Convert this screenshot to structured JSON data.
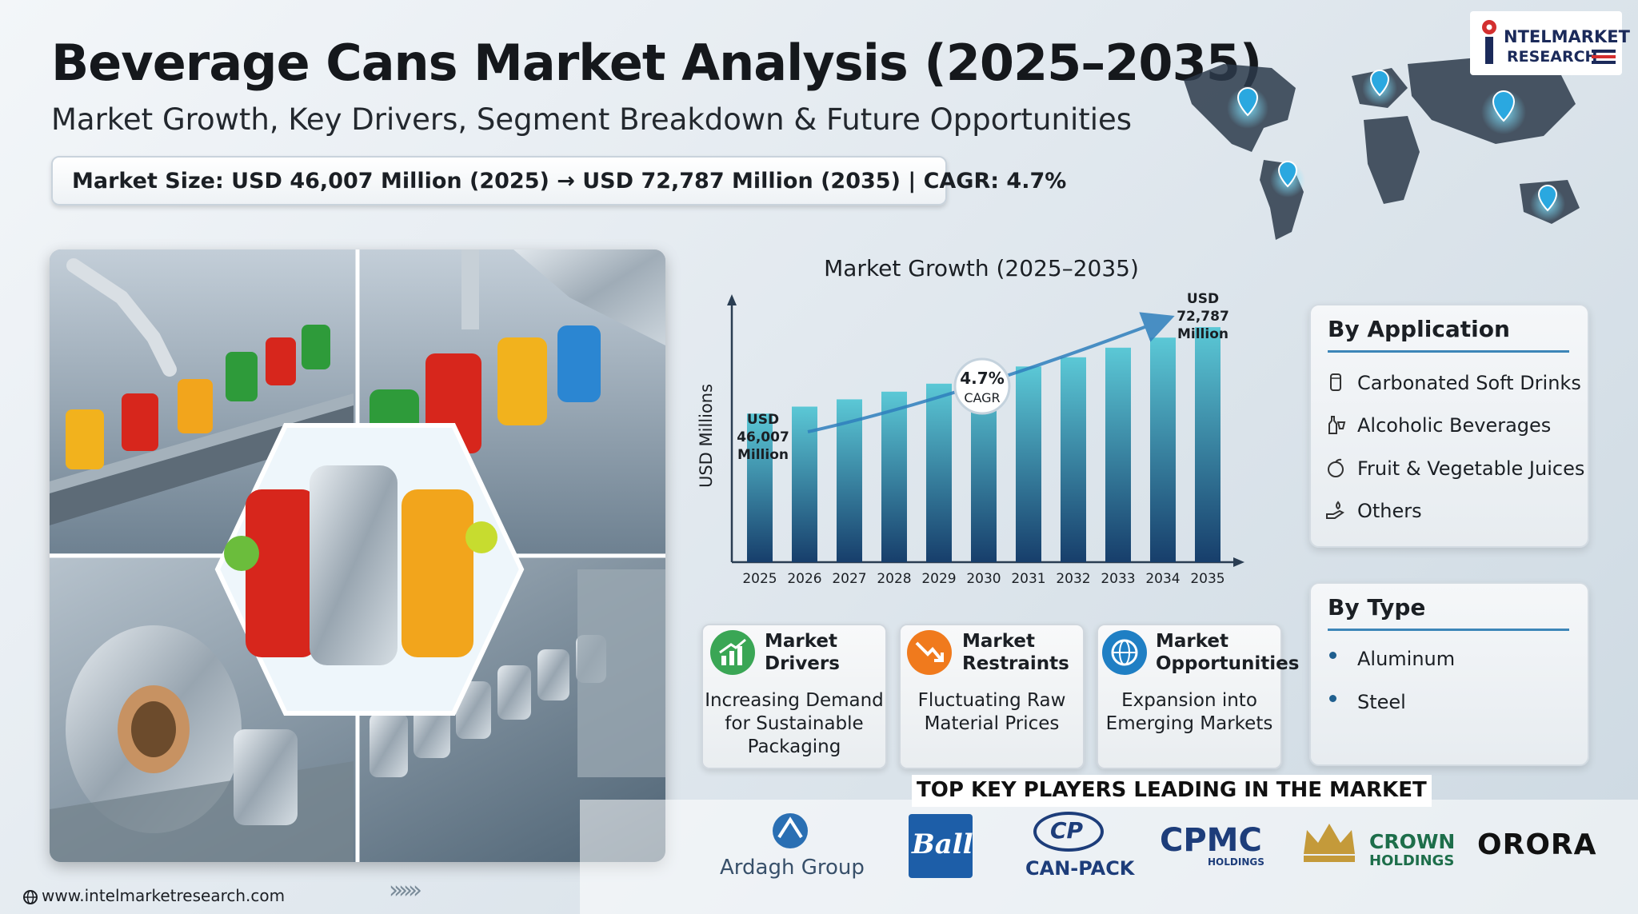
{
  "header": {
    "title": "Beverage Cans Market Analysis (2025–2035)",
    "subtitle": "Market Growth, Key Drivers, Segment Breakdown & Future Opportunities",
    "market_size": "Market Size: USD 46,007 Million (2025) → USD 72,787 Million (2035)  |  CAGR: 4.7%"
  },
  "logo": {
    "line1": "NTELMARKET",
    "line2": "RESEARCH"
  },
  "chart": {
    "title": "Market Growth (2025–2035)",
    "start_label": [
      "USD",
      "46,007",
      "Million"
    ],
    "end_label": [
      "USD",
      "72,787",
      "Million"
    ],
    "cagr_value": "4.7%",
    "cagr_label": "CAGR"
  },
  "chart_data": {
    "type": "bar",
    "title": "Market Growth (2025–2035)",
    "xlabel": "",
    "ylabel": "USD Millions",
    "categories": [
      "2025",
      "2026",
      "2027",
      "2028",
      "2029",
      "2030",
      "2031",
      "2032",
      "2033",
      "2034",
      "2035"
    ],
    "values": [
      46007,
      48169,
      50433,
      52803,
      55285,
      57884,
      60604,
      63453,
      66435,
      69557,
      72787
    ],
    "ylim": [
      0,
      80000
    ],
    "grid": false,
    "legend": "none"
  },
  "by_application": {
    "title": "By Application",
    "items": [
      "Carbonated Soft Drinks",
      "Alcoholic Beverages",
      "Fruit & Vegetable Juices",
      "Others"
    ]
  },
  "by_type": {
    "title": "By Type",
    "items": [
      "Aluminum",
      "Steel"
    ]
  },
  "boxes": [
    {
      "head": [
        "Market",
        "Drivers"
      ],
      "body": [
        "Increasing Demand",
        "for Sustainable",
        "Packaging"
      ],
      "color": "#3aa655"
    },
    {
      "head": [
        "Market",
        "Restraints"
      ],
      "body": [
        "Fluctuating Raw",
        "Material Prices"
      ],
      "color": "#f07a1d"
    },
    {
      "head": [
        "Market",
        "Opportunities"
      ],
      "body": [
        "Expansion into",
        "Emerging Markets"
      ],
      "color": "#1f7fc4"
    }
  ],
  "players": {
    "heading": "TOP KEY PLAYERS LEADING IN THE MARKET",
    "ardagh": "Ardagh Group",
    "ball": "Ball",
    "canpack_mark": "CP",
    "canpack": "CAN-PACK",
    "cpmc": "CPMC",
    "cpmc_sub": "HOLDINGS",
    "crown": "CROWN",
    "crown_sub": "HOLDINGS",
    "orora": "ORORA"
  },
  "footer": {
    "url": "www.intelmarketresearch.com"
  },
  "colors": {
    "bar_top": "#5bc8d6",
    "bar_bottom": "#173e6b",
    "accent": "#3d86b8",
    "brand_navy": "#1b2a5a"
  }
}
